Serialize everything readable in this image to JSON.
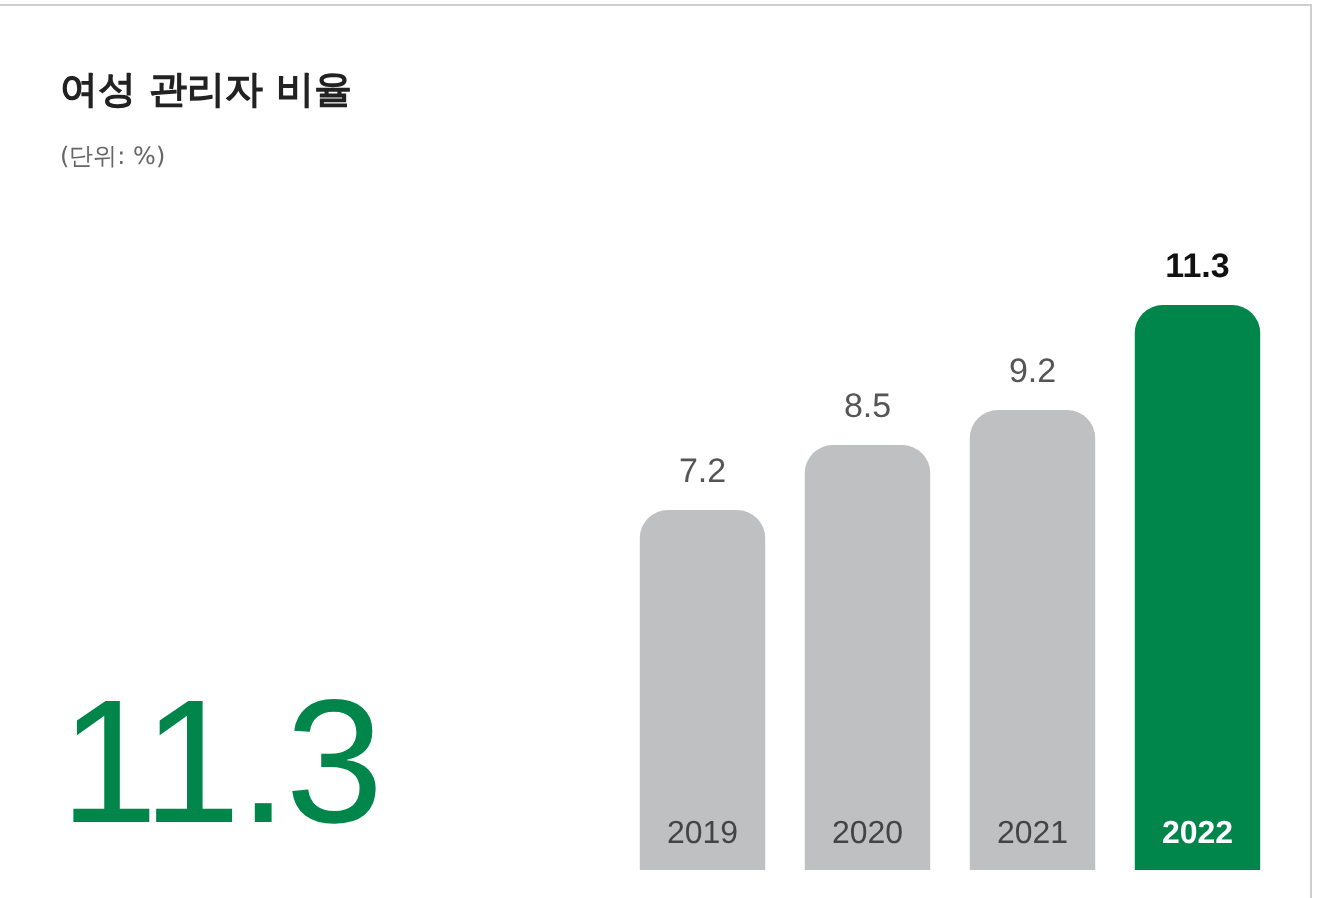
{
  "chart_data": {
    "type": "bar",
    "title": "여성 관리자 비율",
    "subtitle": "(단위: %)",
    "categories": [
      "2019",
      "2020",
      "2021",
      "2022"
    ],
    "values": [
      7.2,
      8.5,
      9.2,
      11.3
    ],
    "colors": [
      "#bfc0c2",
      "#bfc0c2",
      "#bfc0c2",
      "#00854a"
    ],
    "data_labels": true,
    "annotations": [
      "11.3"
    ]
  }
}
